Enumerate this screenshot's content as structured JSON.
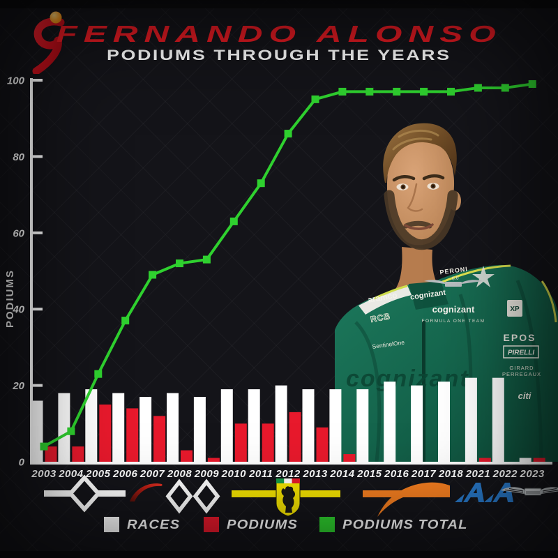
{
  "header": {
    "brand_icon": "supersport-s-logo",
    "title": "FERNANDO ALONSO",
    "subtitle": "PODIUMS THROUGH THE YEARS"
  },
  "chart_data": {
    "type": "bar",
    "title": "PODIUMS THROUGH THE YEARS",
    "xlabel": "",
    "ylabel": "PODIUMS",
    "ylim": [
      0,
      100
    ],
    "yticks": [
      0,
      20,
      40,
      60,
      80,
      100
    ],
    "grid": false,
    "legend_position": "bottom",
    "categories": [
      "2003",
      "2004",
      "2005",
      "2006",
      "2007",
      "2008",
      "2009",
      "2010",
      "2011",
      "2012",
      "2013",
      "2014",
      "2015",
      "2016",
      "2017",
      "2018",
      "2021",
      "2022",
      "2023"
    ],
    "series": [
      {
        "name": "RACES",
        "type": "bar",
        "color": "#ffffff",
        "values": [
          16,
          18,
          19,
          18,
          17,
          18,
          17,
          19,
          19,
          20,
          19,
          19,
          19,
          21,
          20,
          21,
          22,
          22,
          1
        ]
      },
      {
        "name": "PODIUMS",
        "type": "bar",
        "color": "#e8192c",
        "values": [
          4,
          4,
          15,
          14,
          12,
          3,
          1,
          10,
          10,
          13,
          9,
          2,
          0,
          0,
          0,
          0,
          1,
          0,
          1
        ]
      },
      {
        "name": "PODIUMS TOTAL",
        "type": "line",
        "color": "#2fd12f",
        "marker": "square",
        "values": [
          4,
          8,
          23,
          37,
          49,
          52,
          53,
          63,
          73,
          86,
          95,
          97,
          97,
          97,
          97,
          97,
          98,
          98,
          99
        ]
      }
    ]
  },
  "legend": {
    "items": [
      {
        "label": "RACES",
        "color": "#ffffff"
      },
      {
        "label": "PODIUMS",
        "color": "#e8192c"
      },
      {
        "label": "PODIUMS TOTAL",
        "color": "#2fd12f"
      }
    ]
  },
  "teams": {
    "items": [
      {
        "icon": "renault-logo",
        "era": "2003-2006",
        "color": "#ffffff"
      },
      {
        "icon": "mclaren-speedmark-logo",
        "era": "2007",
        "color": "#c21e15"
      },
      {
        "icon": "renault-logo",
        "era": "2008",
        "color": "#ffffff"
      },
      {
        "icon": "renault-logo",
        "era": "2009",
        "color": "#ffffff"
      },
      {
        "icon": "ferrari-shield-logo",
        "era": "2010-2014",
        "color": "#f5e400"
      },
      {
        "icon": "mclaren-speedmark-logo",
        "era": "2015-2018",
        "color": "#f47e20"
      },
      {
        "icon": "alpine-logo",
        "era": "2021-2022",
        "color": "#2878c8"
      },
      {
        "icon": "aston-martin-wings-logo",
        "era": "2023",
        "color": "#b7bcbf"
      }
    ]
  },
  "photo": {
    "subject": "Fernando Alonso in green Aston Martin race suit",
    "sponsors": {
      "collar": "cognizant",
      "shoulder_patch": "PERONI",
      "shoulder_patch_sub": "0.0",
      "chest_left_1": "aramco",
      "chest_left_2": "RCB",
      "chest_left_3": "SentinelOne",
      "chest_center_1": "cognizant",
      "chest_center_2": "FORMULA ONE TEAM",
      "chest_right_patch": "XP",
      "chest_right_1": "EPOS",
      "chest_right_2": "PIRELLI",
      "chest_right_3a": "GIRARD",
      "chest_right_3b": "PERREGAUX",
      "sleeve_right": "citi",
      "waist_watermark": "cognizant"
    }
  }
}
